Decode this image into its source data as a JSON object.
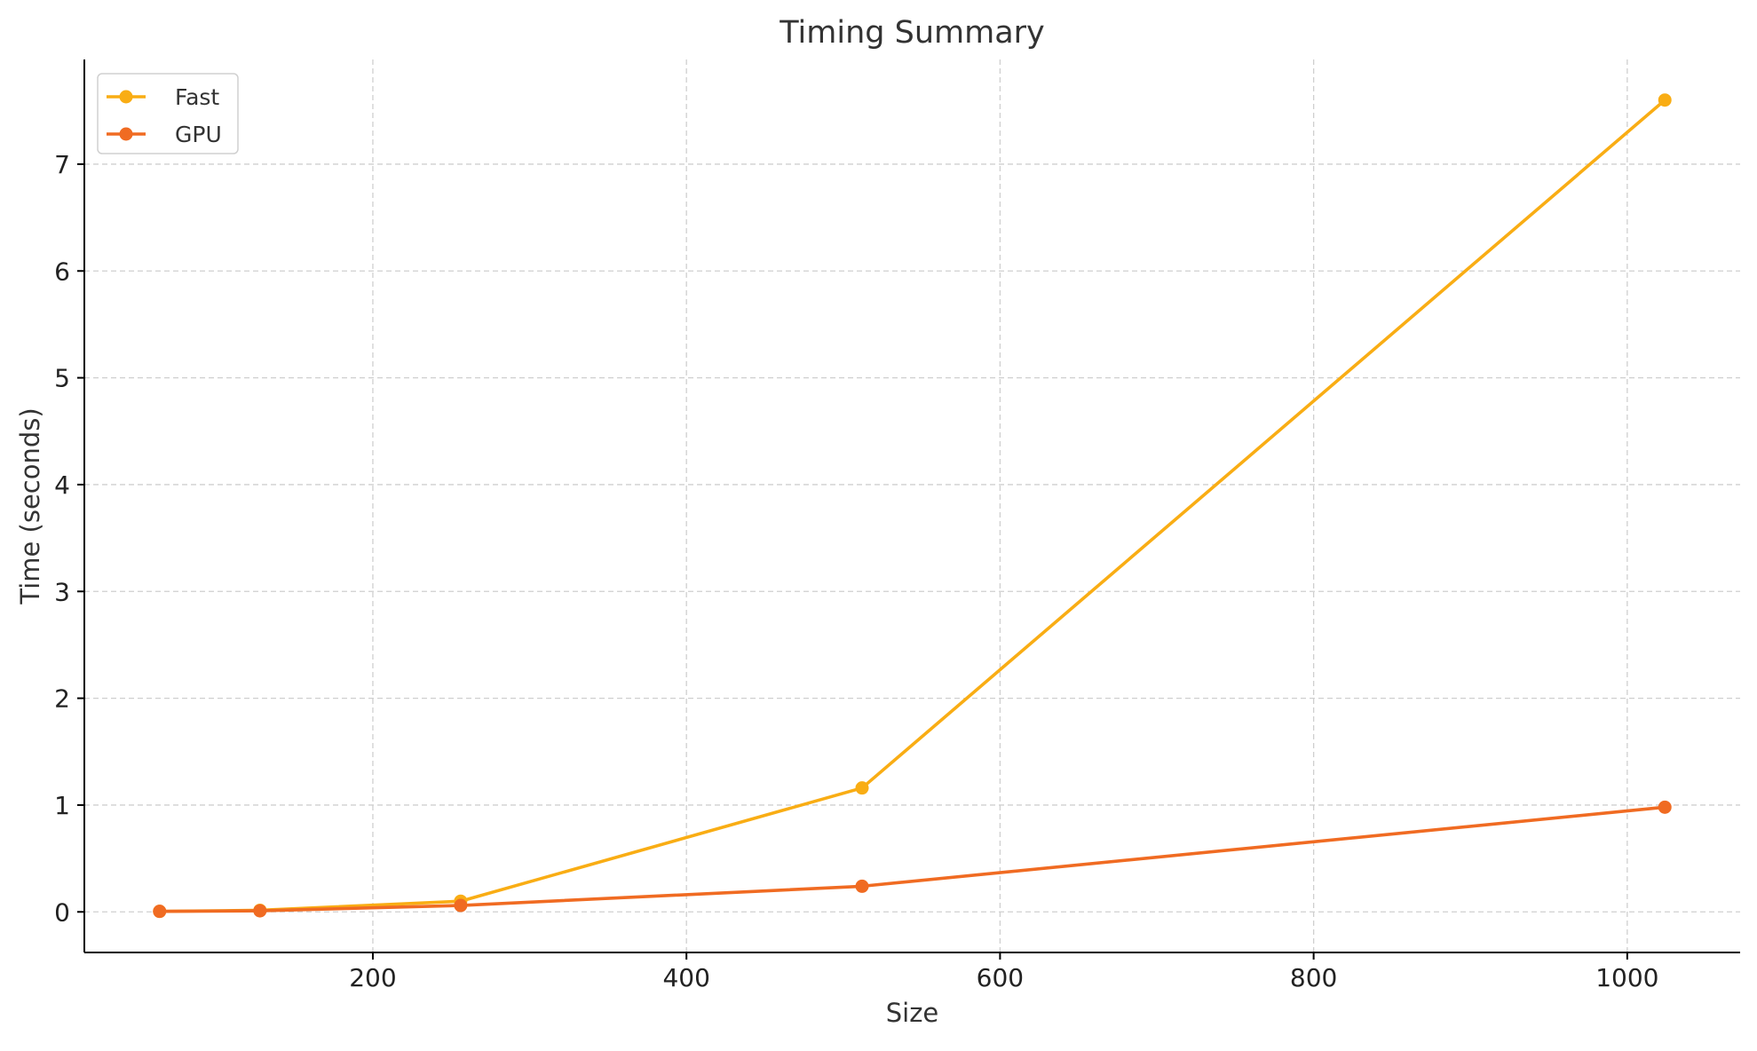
{
  "chart_data": {
    "type": "line",
    "title": "Timing Summary",
    "xlabel": "Size",
    "ylabel": "Time (seconds)",
    "xlim": [
      16,
      1072
    ],
    "ylim": [
      -0.38,
      7.98
    ],
    "xticks": [
      200,
      400,
      600,
      800,
      1000
    ],
    "yticks": [
      0,
      1,
      2,
      3,
      4,
      5,
      6,
      7
    ],
    "grid": true,
    "legend_position": "top-left",
    "x": [
      64,
      128,
      256,
      512,
      1024
    ],
    "series": [
      {
        "name": "Fast",
        "color": "#f9ad14",
        "marker": "circle",
        "values": [
          0.005,
          0.015,
          0.1,
          1.16,
          7.6
        ]
      },
      {
        "name": "GPU",
        "color": "#f06b22",
        "marker": "circle",
        "values": [
          0.005,
          0.01,
          0.06,
          0.24,
          0.98
        ]
      }
    ]
  }
}
